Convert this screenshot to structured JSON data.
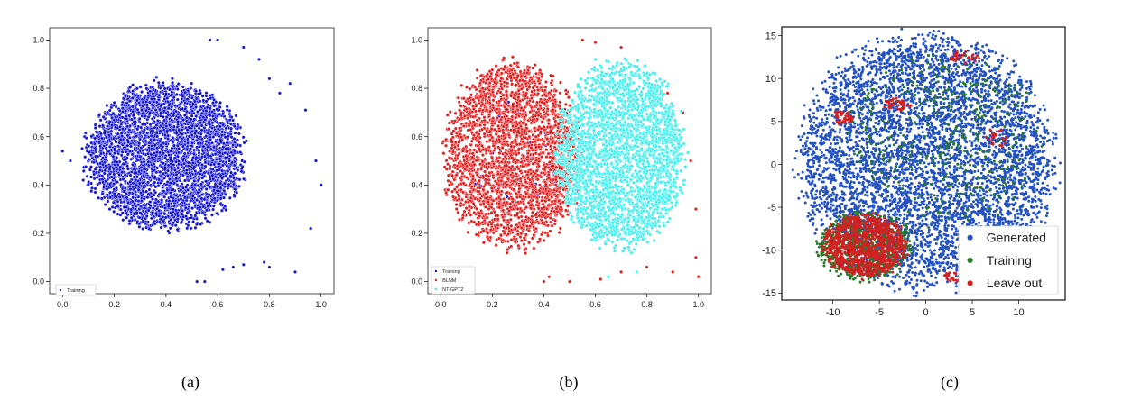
{
  "figure": {
    "captions": [
      "(a)",
      "(b)",
      "(c)"
    ]
  },
  "chart_data": [
    {
      "type": "scatter",
      "panel": "(a)",
      "xlim": [
        -0.05,
        1.05
      ],
      "ylim": [
        -0.05,
        1.05
      ],
      "xticks": [
        "0.0",
        "0.2",
        "0.4",
        "0.6",
        "0.8",
        "1.0"
      ],
      "yticks": [
        "0.0",
        "0.2",
        "0.4",
        "0.6",
        "0.8",
        "1.0"
      ],
      "xtick_values": [
        0.0,
        0.2,
        0.4,
        0.6,
        0.8,
        1.0
      ],
      "ytick_values": [
        0.0,
        0.2,
        0.4,
        0.6,
        0.8,
        1.0
      ],
      "grid": false,
      "legend_position": "bottom-left",
      "colors": {
        "Training": "#1515d6"
      },
      "series": [
        {
          "name": "Training",
          "clusters": [
            {
              "cx": 0.4,
              "cy": 0.52,
              "rx": 0.3,
              "ry": 0.3,
              "n": 3400
            }
          ],
          "outliers": [
            [
              0.57,
              1.0
            ],
            [
              0.6,
              1.0
            ],
            [
              0.7,
              0.97
            ],
            [
              0.76,
              0.92
            ],
            [
              0.8,
              0.84
            ],
            [
              0.84,
              0.78
            ],
            [
              0.88,
              0.82
            ],
            [
              0.94,
              0.71
            ],
            [
              0.98,
              0.5
            ],
            [
              1.0,
              0.4
            ],
            [
              0.52,
              0.0
            ],
            [
              0.55,
              0.0
            ],
            [
              0.62,
              0.05
            ],
            [
              0.66,
              0.06
            ],
            [
              0.7,
              0.07
            ],
            [
              0.78,
              0.08
            ],
            [
              0.8,
              0.06
            ],
            [
              0.9,
              0.04
            ],
            [
              0.96,
              0.22
            ],
            [
              0.0,
              0.54
            ],
            [
              0.03,
              0.5
            ],
            [
              0.08,
              0.42
            ]
          ]
        }
      ]
    },
    {
      "type": "scatter",
      "panel": "(b)",
      "xlim": [
        -0.05,
        1.05
      ],
      "ylim": [
        -0.05,
        1.05
      ],
      "xticks": [
        "0.0",
        "0.2",
        "0.4",
        "0.6",
        "0.8",
        "1.0"
      ],
      "yticks": [
        "0.0",
        "0.2",
        "0.4",
        "0.6",
        "0.8",
        "1.0"
      ],
      "xtick_values": [
        0.0,
        0.2,
        0.4,
        0.6,
        0.8,
        1.0
      ],
      "ytick_values": [
        0.0,
        0.2,
        0.4,
        0.6,
        0.8,
        1.0
      ],
      "grid": false,
      "legend_position": "bottom-left",
      "colors": {
        "Training": "#1515d6",
        "BLNM": "#e61e1e",
        "NT-GPT2": "#3ef0ee"
      },
      "series": [
        {
          "name": "Training",
          "clusters": [
            {
              "cx": 0.3,
              "cy": 0.52,
              "rx": 0.18,
              "ry": 0.22,
              "n": 40
            }
          ],
          "outliers": []
        },
        {
          "name": "BLNM",
          "clusters": [
            {
              "cx": 0.28,
              "cy": 0.52,
              "rx": 0.26,
              "ry": 0.38,
              "n": 2600
            }
          ],
          "outliers": [
            [
              0.55,
              1.0
            ],
            [
              0.6,
              0.99
            ],
            [
              0.7,
              0.97
            ],
            [
              0.8,
              0.86
            ],
            [
              0.88,
              0.78
            ],
            [
              0.94,
              0.7
            ],
            [
              0.97,
              0.5
            ],
            [
              0.99,
              0.3
            ],
            [
              0.99,
              0.1
            ],
            [
              1.0,
              0.02
            ],
            [
              0.9,
              0.04
            ],
            [
              0.8,
              0.06
            ],
            [
              0.7,
              0.04
            ],
            [
              0.62,
              0.01
            ],
            [
              0.5,
              0.0
            ],
            [
              0.42,
              0.02
            ],
            [
              0.4,
              0.0
            ],
            [
              0.01,
              0.58
            ],
            [
              0.03,
              0.44
            ]
          ]
        },
        {
          "name": "NT-GPT2",
          "clusters": [
            {
              "cx": 0.7,
              "cy": 0.52,
              "rx": 0.24,
              "ry": 0.38,
              "n": 2600
            }
          ],
          "outliers": [
            [
              0.6,
              0.92
            ],
            [
              0.76,
              0.04
            ],
            [
              0.65,
              0.02
            ]
          ]
        }
      ]
    },
    {
      "type": "scatter",
      "panel": "(c)",
      "xlim": [
        -15.5,
        15
      ],
      "ylim": [
        -15.8,
        16
      ],
      "xticks": [
        "-10",
        "-5",
        "0",
        "5",
        "10"
      ],
      "yticks": [
        "15",
        "10",
        "5",
        "0",
        "-5",
        "-10",
        "-15"
      ],
      "xtick_values": [
        -10,
        -5,
        0,
        5,
        10
      ],
      "ytick_values": [
        15,
        10,
        5,
        0,
        -5,
        -10,
        -15
      ],
      "grid": false,
      "legend_position": "bottom-right",
      "colors": {
        "Generated": "#2452c2",
        "Training": "#2a7a2a",
        "Leave out": "#d42020"
      },
      "series": [
        {
          "name": "Generated",
          "clusters": [
            {
              "cx": 0.0,
              "cy": 0.5,
              "rx": 13.5,
              "ry": 14.5,
              "n": 5200
            }
          ],
          "outliers": []
        },
        {
          "name": "Training",
          "clusters": [
            {
              "cx": -6.5,
              "cy": -9.5,
              "rx": 5.0,
              "ry": 4.0,
              "n": 700
            },
            {
              "cx": 2.0,
              "cy": 3.0,
              "rx": 10.0,
              "ry": 10.0,
              "n": 350
            }
          ],
          "outliers": []
        },
        {
          "name": "Leave out",
          "clusters": [
            {
              "cx": -6.5,
              "cy": -9.5,
              "rx": 4.5,
              "ry": 3.6,
              "n": 900
            },
            {
              "cx": -9.0,
              "cy": 5.5,
              "rx": 1.2,
              "ry": 0.8,
              "n": 40
            },
            {
              "cx": -3.0,
              "cy": 7.0,
              "rx": 1.5,
              "ry": 0.8,
              "n": 40
            },
            {
              "cx": 4.0,
              "cy": 12.5,
              "rx": 1.8,
              "ry": 0.7,
              "n": 30
            },
            {
              "cx": 3.5,
              "cy": -13.0,
              "rx": 1.8,
              "ry": 0.8,
              "n": 40
            },
            {
              "cx": 7.5,
              "cy": 3.0,
              "rx": 1.2,
              "ry": 1.2,
              "n": 25
            }
          ],
          "outliers": []
        }
      ]
    }
  ]
}
